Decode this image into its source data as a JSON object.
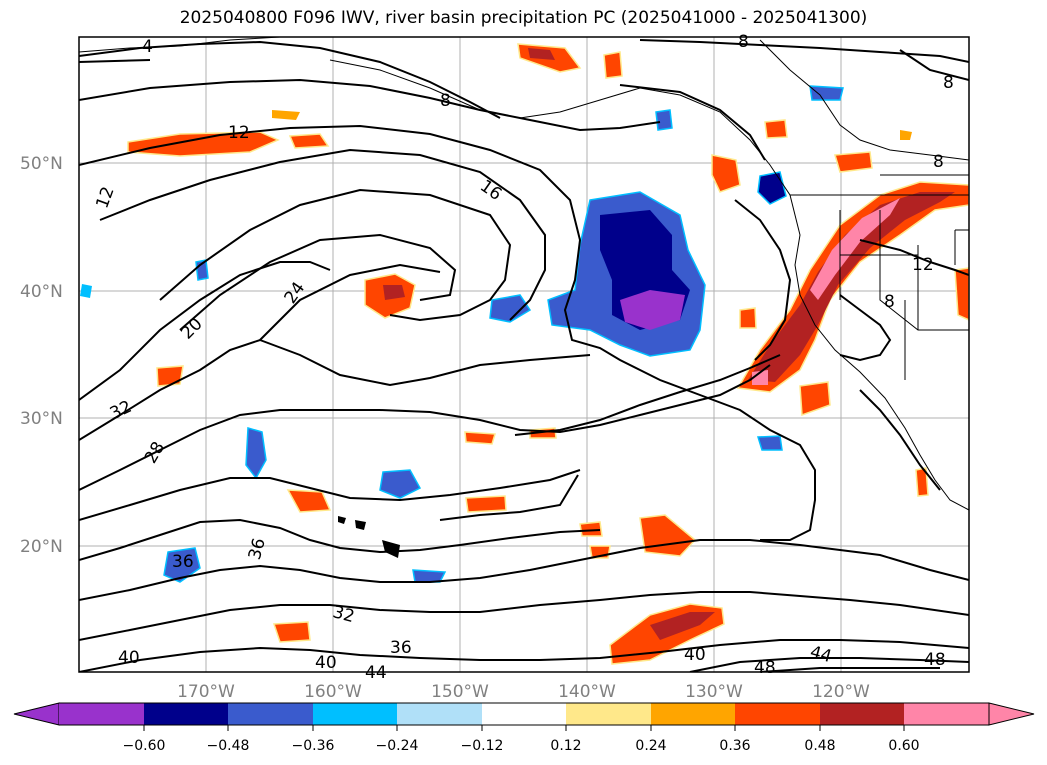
{
  "title": "2025040800 F096 IWV, river basin precipitation PC (2025041000 - 2025041300)",
  "lat_labels": [
    "50°N",
    "40°N",
    "30°N",
    "20°N"
  ],
  "lon_labels": [
    "170°W",
    "160°W",
    "150°W",
    "140°W",
    "130°W",
    "120°W"
  ],
  "contour_labels": [
    "4",
    "8",
    "8",
    "8",
    "8",
    "12",
    "12",
    "12",
    "16",
    "20",
    "24",
    "28",
    "32",
    "32",
    "36",
    "36",
    "36",
    "40",
    "40",
    "40",
    "44",
    "44",
    "48",
    "48",
    "8"
  ],
  "colorbar": {
    "ticks": [
      "−0.60",
      "−0.48",
      "−0.36",
      "−0.24",
      "−0.12",
      "0.12",
      "0.24",
      "0.36",
      "0.48",
      "0.60"
    ],
    "colors": [
      "#9932cc",
      "#00008b",
      "#3a5bcd",
      "#00bfff",
      "#b0e0f8",
      "#ffffff",
      "#ffe88a",
      "#ffa500",
      "#ff4500",
      "#b22222",
      "#ff85a8"
    ]
  }
}
